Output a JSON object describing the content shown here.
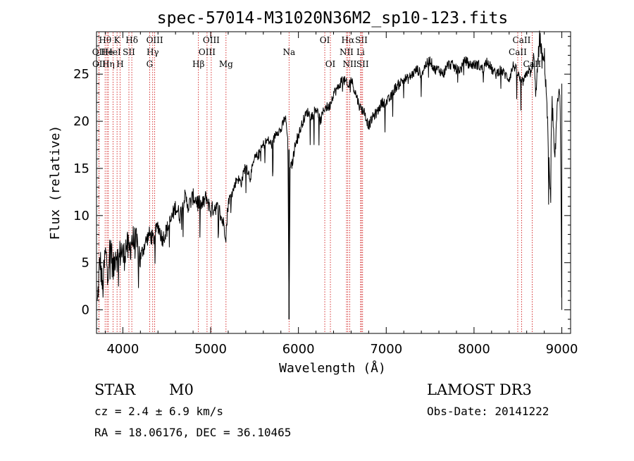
{
  "chart_data": {
    "type": "line",
    "title": "spec-57014-M31020N36M2_sp10-123.fits",
    "xlabel": "Wavelength (Å)",
    "ylabel": "Flux (relative)",
    "xlim": [
      3700,
      9100
    ],
    "ylim": [
      -2.5,
      29.5
    ],
    "xticks": [
      4000,
      5000,
      6000,
      7000,
      8000,
      9000
    ],
    "yticks": [
      0,
      5,
      10,
      15,
      20,
      25
    ],
    "line_color": "#cc0000",
    "series": [
      {
        "name": "flux",
        "x": [
          3710,
          3740,
          3770,
          3800,
          3830,
          3860,
          3890,
          3920,
          3950,
          3980,
          4010,
          4040,
          4070,
          4100,
          4150,
          4200,
          4250,
          4300,
          4350,
          4400,
          4450,
          4500,
          4550,
          4600,
          4650,
          4700,
          4750,
          4800,
          4850,
          4900,
          4950,
          5000,
          5050,
          5100,
          5150,
          5175,
          5200,
          5250,
          5300,
          5350,
          5400,
          5450,
          5500,
          5550,
          5600,
          5650,
          5700,
          5750,
          5800,
          5850,
          5880,
          5893,
          5906,
          5930,
          5970,
          6000,
          6050,
          6100,
          6150,
          6200,
          6250,
          6300,
          6350,
          6400,
          6450,
          6500,
          6550,
          6563,
          6600,
          6650,
          6700,
          6750,
          6800,
          6850,
          6900,
          6950,
          7000,
          7050,
          7100,
          7150,
          7200,
          7250,
          7300,
          7350,
          7400,
          7450,
          7500,
          7550,
          7600,
          7650,
          7700,
          7750,
          7800,
          7850,
          7900,
          7950,
          8000,
          8050,
          8100,
          8150,
          8200,
          8250,
          8300,
          8350,
          8400,
          8450,
          8500,
          8540,
          8580,
          8620,
          8650,
          8680,
          8700,
          8720,
          8750,
          8780,
          8800,
          8830,
          8850,
          8870,
          8880,
          8890,
          8900,
          8920,
          8950,
          8980,
          9000
        ],
        "y": [
          0.5,
          5.5,
          2,
          6,
          4.5,
          7,
          4,
          6.5,
          5,
          6.5,
          5.5,
          7,
          6,
          7.5,
          7,
          5.5,
          7,
          8,
          7.5,
          9,
          7.5,
          8.5,
          9.5,
          11,
          10,
          12,
          11,
          12,
          11.5,
          11,
          12,
          10.5,
          11,
          10.5,
          9,
          8,
          11.5,
          12.5,
          14,
          13.5,
          15.5,
          14,
          16,
          16.5,
          17.5,
          18,
          17.5,
          19,
          19,
          20.5,
          18,
          -1,
          15,
          15.5,
          18,
          18.5,
          20,
          21,
          20.5,
          21.5,
          20,
          21.5,
          21.5,
          23,
          23.5,
          24.5,
          24,
          23.5,
          24.5,
          23,
          21.5,
          21,
          19.5,
          20.5,
          21,
          22,
          22,
          22.5,
          23.5,
          24,
          24.5,
          24.5,
          25,
          25.5,
          25,
          26,
          26.5,
          25.5,
          25.5,
          25,
          26,
          26,
          25.5,
          25.5,
          26.5,
          26,
          26,
          26,
          25.5,
          26.5,
          25.5,
          25,
          25.5,
          25,
          24.5,
          26,
          25,
          24,
          24.5,
          25.5,
          25,
          27,
          23.5,
          25,
          29,
          26,
          27,
          22,
          16,
          12,
          18,
          22,
          20,
          15,
          22.5,
          24,
          0
        ]
      }
    ],
    "spectral_lines": [
      {
        "label": "Hθ",
        "x": 3798,
        "row": 0
      },
      {
        "label": "OII",
        "x": 3727,
        "row": 1
      },
      {
        "label": "OII",
        "x": 3729,
        "row": 2
      },
      {
        "label": "He",
        "x": 3820,
        "row": 1
      },
      {
        "label": "Hη",
        "x": 3835,
        "row": 2
      },
      {
        "label": "K",
        "x": 3934,
        "row": 0
      },
      {
        "label": "HeI",
        "x": 3889,
        "row": 1
      },
      {
        "label": "H",
        "x": 3969,
        "row": 2
      },
      {
        "label": "SII",
        "x": 4069,
        "row": 1
      },
      {
        "label": "Hδ",
        "x": 4102,
        "row": 0
      },
      {
        "label": "OIII",
        "x": 4363,
        "row": 0
      },
      {
        "label": "Hγ",
        "x": 4340,
        "row": 1
      },
      {
        "label": "G",
        "x": 4305,
        "row": 2
      },
      {
        "label": "Hβ",
        "x": 4861,
        "row": 2
      },
      {
        "label": "OIII",
        "x": 5007,
        "row": 0
      },
      {
        "label": "OIII",
        "x": 4959,
        "row": 1
      },
      {
        "label": "Mg",
        "x": 5175,
        "row": 2
      },
      {
        "label": "Na",
        "x": 5893,
        "row": 1
      },
      {
        "label": "OI",
        "x": 6300,
        "row": 0
      },
      {
        "label": "OI",
        "x": 6364,
        "row": 2
      },
      {
        "label": "Hα",
        "x": 6563,
        "row": 0
      },
      {
        "label": "NII",
        "x": 6548,
        "row": 1
      },
      {
        "label": "NII",
        "x": 6584,
        "row": 2
      },
      {
        "label": "SII",
        "x": 6717,
        "row": 0
      },
      {
        "label": "Li",
        "x": 6708,
        "row": 1
      },
      {
        "label": "SII",
        "x": 6731,
        "row": 2
      },
      {
        "label": "CaII",
        "x": 8542,
        "row": 0
      },
      {
        "label": "CaII",
        "x": 8498,
        "row": 1
      },
      {
        "label": "CaII",
        "x": 8662,
        "row": 2
      }
    ]
  },
  "info": {
    "object_type": "STAR",
    "subclass": "M0",
    "survey": "LAMOST DR3",
    "cz": "cz = 2.4 ± 6.9 km/s",
    "obs_date": "Obs-Date: 20141222",
    "coords": "RA =  18.06176, DEC =  36.10465"
  }
}
